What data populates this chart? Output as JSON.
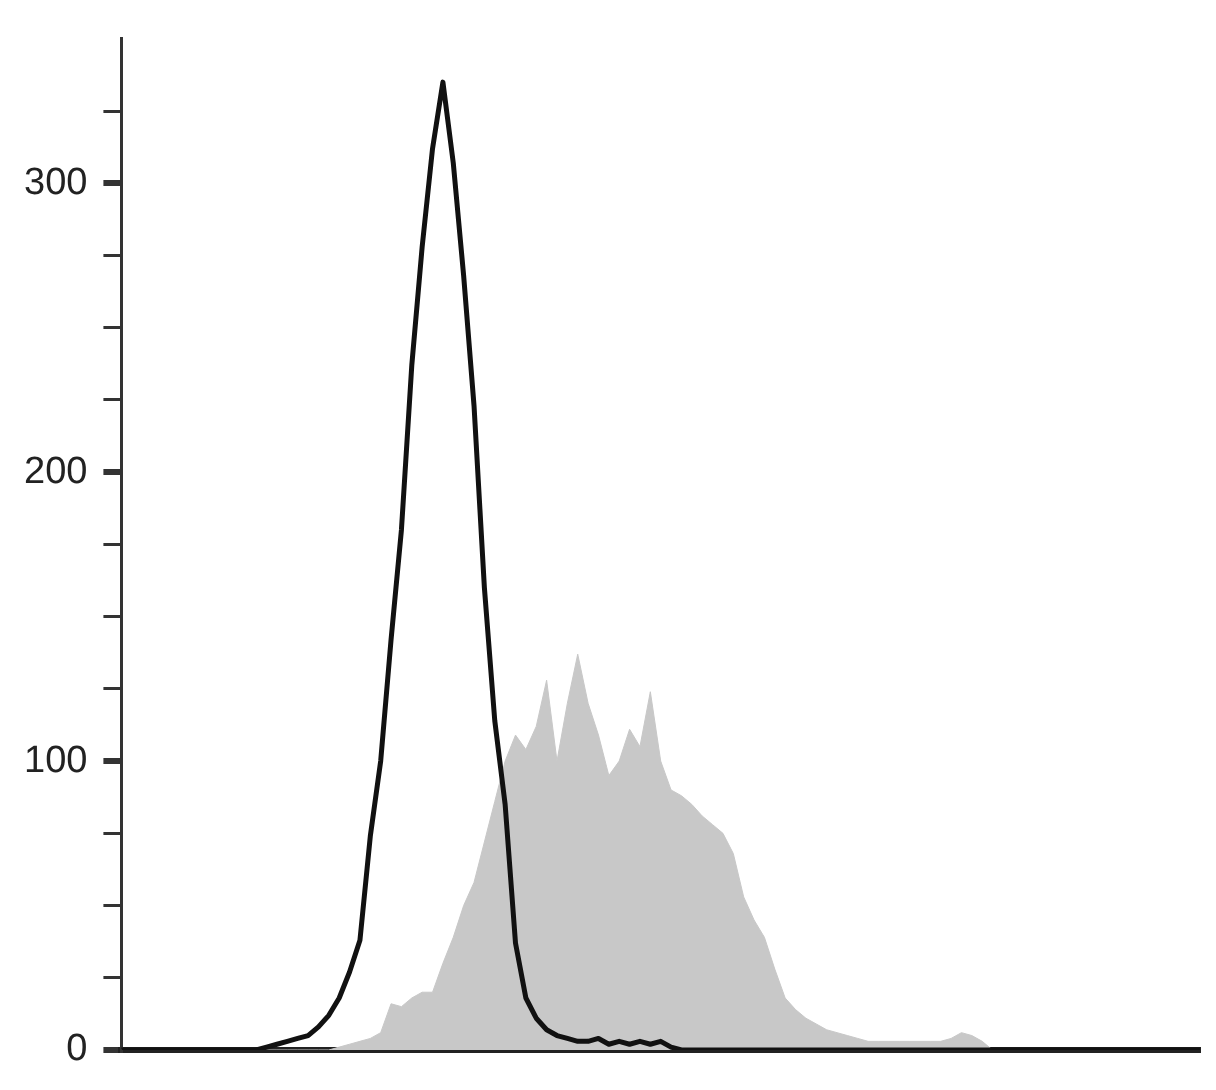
{
  "chart_data": {
    "type": "line",
    "marker": "none",
    "grid": false,
    "legend": false,
    "tick_labels": "y",
    "categories": [
      null,
      null,
      null,
      null,
      null,
      null,
      null,
      null,
      null,
      null,
      null,
      null,
      null,
      null,
      null,
      null,
      null,
      null,
      null,
      null,
      null,
      null,
      null,
      null,
      null,
      null,
      null,
      null,
      null,
      null,
      null,
      null,
      null,
      null,
      null,
      null,
      null,
      null,
      null,
      null,
      null,
      null,
      null,
      null,
      null,
      null,
      null,
      null,
      null,
      null,
      null,
      null,
      null,
      null,
      null,
      null,
      null,
      null,
      null,
      null,
      null,
      null,
      null,
      null,
      null,
      null,
      null,
      null,
      null,
      null,
      null,
      null,
      null,
      null,
      null,
      null,
      null,
      null,
      null,
      null,
      null,
      null,
      null,
      null,
      null,
      null,
      null,
      null,
      null,
      null,
      null,
      null,
      null,
      null,
      null,
      null,
      null,
      null,
      null,
      null,
      null,
      null,
      null,
      null,
      null
    ],
    "ylim": [
      0,
      350
    ],
    "yticks": [
      0,
      {
        "value": 25,
        "label": null
      },
      {
        "value": 50,
        "label": null
      },
      {
        "value": 75,
        "label": null
      },
      100,
      {
        "value": 125,
        "label": null
      },
      {
        "value": 150,
        "label": null
      },
      {
        "value": 175,
        "label": null
      },
      200,
      {
        "value": 225,
        "label": null
      },
      {
        "value": 250,
        "label": null
      },
      {
        "value": 275,
        "label": null
      },
      300,
      {
        "value": 325,
        "label": null
      }
    ],
    "series": [
      {
        "type": "area",
        "color": "#c8c8c8",
        "values": [
          0,
          0,
          0,
          0,
          0,
          0,
          0,
          0,
          0,
          0,
          0,
          0,
          0,
          0,
          0,
          0,
          0,
          0,
          0,
          0,
          0,
          1,
          2,
          3,
          4,
          6,
          16,
          15,
          18,
          20,
          20,
          30,
          39,
          50,
          58,
          72,
          86,
          100,
          109,
          104,
          112,
          128,
          100,
          120,
          137,
          120,
          109,
          95,
          100,
          111,
          105,
          124,
          100,
          90,
          88,
          85,
          81,
          78,
          75,
          68,
          53,
          45,
          39,
          28,
          18,
          14,
          11,
          9,
          7,
          6,
          5,
          4,
          3,
          3,
          3,
          3,
          3,
          3,
          3,
          3,
          4,
          6,
          5,
          3,
          0,
          0,
          0,
          0,
          0,
          0,
          0,
          0,
          0,
          0,
          0,
          0,
          0,
          0,
          0,
          0,
          0,
          0,
          0,
          0,
          0
        ]
      },
      {
        "type": "line",
        "color": "#111111",
        "values": [
          0,
          0,
          0,
          0,
          0,
          0,
          0,
          0,
          0,
          0,
          0,
          0,
          0,
          0,
          1,
          2,
          3,
          4,
          5,
          8,
          12,
          18,
          27,
          38,
          74,
          100,
          142,
          180,
          237,
          278,
          312,
          335,
          307,
          268,
          223,
          160,
          114,
          85,
          37,
          18,
          11,
          7,
          5,
          4,
          3,
          3,
          4,
          2,
          3,
          2,
          3,
          2,
          3,
          1,
          0,
          0,
          0,
          0,
          0,
          0,
          0,
          0,
          0,
          0,
          0,
          0,
          0,
          0,
          0,
          0,
          0,
          0,
          0,
          0,
          0,
          0,
          0,
          0,
          0,
          0,
          0,
          0,
          0,
          0,
          0,
          0,
          0,
          0,
          0,
          0,
          0,
          0,
          0,
          0,
          0,
          0,
          0,
          0,
          0,
          0,
          0,
          0,
          0,
          0,
          0
        ]
      }
    ]
  }
}
